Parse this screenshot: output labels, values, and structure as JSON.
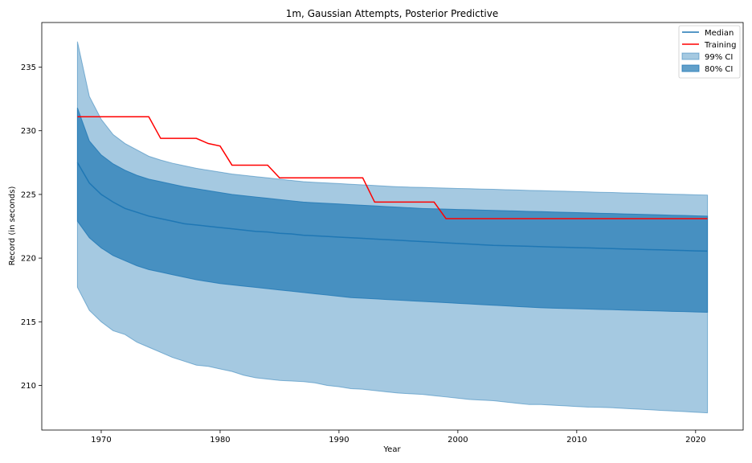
{
  "colors": {
    "median": "#1f77b4",
    "training": "#ff0000",
    "ci99_fill": "#1f77b4",
    "ci80_fill": "#1f77b4"
  },
  "chart_data": {
    "type": "line",
    "title": "1m, Gaussian Attempts, Posterior Predictive",
    "xlabel": "Year",
    "ylabel": "Record (in seconds)",
    "xlim": [
      1965,
      2024
    ],
    "ylim": [
      206.5,
      238.5
    ],
    "xticks": [
      1970,
      1980,
      1990,
      2000,
      2010,
      2020
    ],
    "yticks": [
      210,
      215,
      220,
      225,
      230,
      235
    ],
    "grid": false,
    "legend_position": "upper right",
    "legend": [
      "Median",
      "Training",
      "99% CI",
      "80% CI"
    ],
    "x": [
      1968,
      1969,
      1970,
      1971,
      1972,
      1973,
      1974,
      1975,
      1976,
      1977,
      1978,
      1979,
      1980,
      1981,
      1982,
      1983,
      1984,
      1985,
      1986,
      1987,
      1988,
      1989,
      1990,
      1991,
      1992,
      1993,
      1994,
      1995,
      1996,
      1997,
      1998,
      1999,
      2000,
      2001,
      2002,
      2003,
      2004,
      2005,
      2006,
      2007,
      2008,
      2009,
      2010,
      2011,
      2012,
      2013,
      2014,
      2015,
      2016,
      2017,
      2018,
      2019,
      2020,
      2021
    ],
    "median": [
      227.5,
      225.9,
      225.0,
      224.4,
      223.9,
      223.6,
      223.3,
      223.1,
      222.9,
      222.7,
      222.6,
      222.5,
      222.4,
      222.3,
      222.2,
      222.1,
      222.05,
      221.95,
      221.9,
      221.8,
      221.75,
      221.7,
      221.65,
      221.6,
      221.55,
      221.5,
      221.45,
      221.4,
      221.35,
      221.3,
      221.25,
      221.2,
      221.15,
      221.1,
      221.05,
      221.0,
      220.98,
      220.95,
      220.93,
      220.9,
      220.87,
      220.85,
      220.82,
      220.8,
      220.77,
      220.75,
      220.72,
      220.7,
      220.67,
      220.65,
      220.62,
      220.6,
      220.57,
      220.55
    ],
    "ci80_upper": [
      231.8,
      229.2,
      228.1,
      227.4,
      226.9,
      226.5,
      226.2,
      226.0,
      225.8,
      225.6,
      225.45,
      225.3,
      225.15,
      225.0,
      224.9,
      224.8,
      224.7,
      224.6,
      224.5,
      224.4,
      224.35,
      224.3,
      224.25,
      224.2,
      224.15,
      224.1,
      224.05,
      224.0,
      223.95,
      223.9,
      223.87,
      223.85,
      223.82,
      223.8,
      223.77,
      223.75,
      223.72,
      223.7,
      223.67,
      223.65,
      223.62,
      223.6,
      223.57,
      223.55,
      223.52,
      223.5,
      223.47,
      223.45,
      223.42,
      223.4,
      223.37,
      223.35,
      223.32,
      223.3
    ],
    "ci80_lower": [
      222.9,
      221.6,
      220.8,
      220.2,
      219.8,
      219.4,
      219.1,
      218.9,
      218.7,
      218.5,
      218.3,
      218.15,
      218.0,
      217.9,
      217.8,
      217.7,
      217.6,
      217.5,
      217.4,
      217.3,
      217.2,
      217.1,
      217.0,
      216.9,
      216.85,
      216.8,
      216.75,
      216.7,
      216.65,
      216.6,
      216.55,
      216.5,
      216.45,
      216.4,
      216.35,
      216.3,
      216.25,
      216.2,
      216.15,
      216.1,
      216.07,
      216.05,
      216.02,
      216.0,
      215.97,
      215.95,
      215.92,
      215.9,
      215.87,
      215.85,
      215.82,
      215.8,
      215.77,
      215.75
    ],
    "ci99_upper": [
      237.0,
      232.7,
      230.9,
      229.7,
      229.0,
      228.5,
      228.0,
      227.7,
      227.45,
      227.25,
      227.05,
      226.9,
      226.75,
      226.6,
      226.5,
      226.4,
      226.3,
      226.2,
      226.1,
      226.0,
      225.95,
      225.9,
      225.85,
      225.8,
      225.75,
      225.7,
      225.65,
      225.6,
      225.57,
      225.55,
      225.52,
      225.5,
      225.47,
      225.45,
      225.42,
      225.4,
      225.37,
      225.35,
      225.32,
      225.3,
      225.27,
      225.25,
      225.22,
      225.2,
      225.17,
      225.15,
      225.12,
      225.1,
      225.07,
      225.05,
      225.02,
      225.0,
      224.97,
      224.95
    ],
    "ci99_lower": [
      217.7,
      215.9,
      215.0,
      214.3,
      214.0,
      213.4,
      213.0,
      212.6,
      212.2,
      211.9,
      211.6,
      211.5,
      211.3,
      211.1,
      210.8,
      210.6,
      210.5,
      210.4,
      210.35,
      210.3,
      210.2,
      210.0,
      209.9,
      209.75,
      209.7,
      209.6,
      209.5,
      209.4,
      209.35,
      209.3,
      209.2,
      209.1,
      209.0,
      208.9,
      208.85,
      208.8,
      208.7,
      208.6,
      208.5,
      208.5,
      208.45,
      208.4,
      208.35,
      208.3,
      208.28,
      208.25,
      208.2,
      208.15,
      208.1,
      208.05,
      208.0,
      207.95,
      207.9,
      207.85
    ],
    "training": {
      "x": [
        1968,
        1974,
        1975,
        1978,
        1979,
        1980,
        1981,
        1984,
        1985,
        1992,
        1993,
        1998,
        1999,
        2021
      ],
      "y": [
        231.1,
        231.1,
        229.4,
        229.4,
        229.0,
        228.8,
        227.3,
        227.3,
        226.3,
        226.3,
        224.4,
        224.4,
        223.1,
        223.1
      ]
    }
  }
}
